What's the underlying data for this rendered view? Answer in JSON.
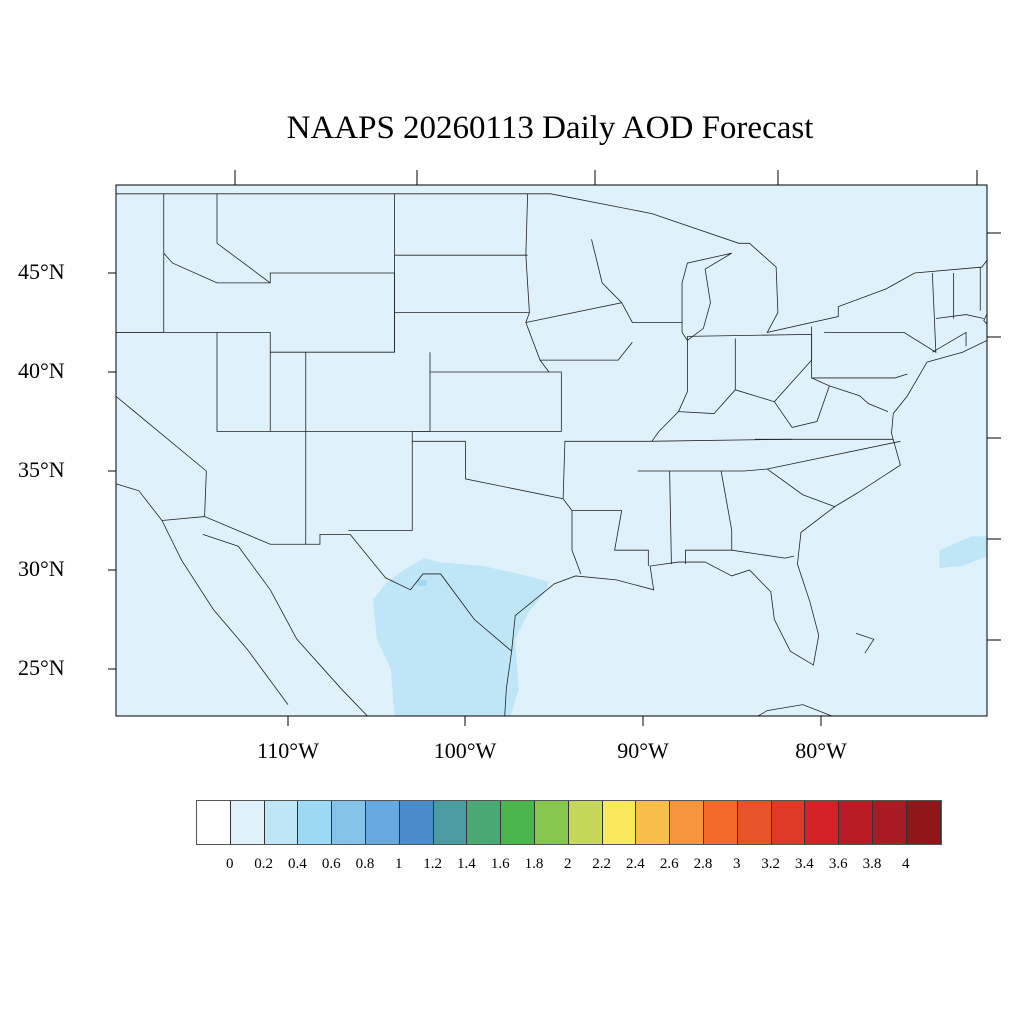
{
  "title": "NAAPS 20260113 Daily AOD Forecast",
  "lat_labels": [
    "45°N",
    "40°N",
    "35°N",
    "30°N",
    "25°N"
  ],
  "lon_labels": [
    "110°W",
    "100°W",
    "90°W",
    "80°W"
  ],
  "colorbar": {
    "labels": [
      "0",
      "0.2",
      "0.4",
      "0.6",
      "0.8",
      "1",
      "1.2",
      "1.4",
      "1.6",
      "1.8",
      "2",
      "2.2",
      "2.4",
      "2.6",
      "2.8",
      "3",
      "3.2",
      "3.4",
      "3.6",
      "3.8",
      "4"
    ],
    "colors": [
      "#ffffff",
      "#dff2fb",
      "#bee6f7",
      "#9dd8f5",
      "#84c2e8",
      "#67a9dc",
      "#4a8bc9",
      "#4a9ca0",
      "#4aa872",
      "#4ab54a",
      "#85c64d",
      "#c6d85a",
      "#f8e85c",
      "#f8bd4a",
      "#f7953a",
      "#f46a2a",
      "#e8542a",
      "#de3a27",
      "#d42027",
      "#b81b24",
      "#a81b22",
      "#8f1619"
    ]
  },
  "map": {
    "background_aod_color": "#dff2fb",
    "plume_color": "#bee6f7",
    "peak_color": "#9dd8f5"
  }
}
